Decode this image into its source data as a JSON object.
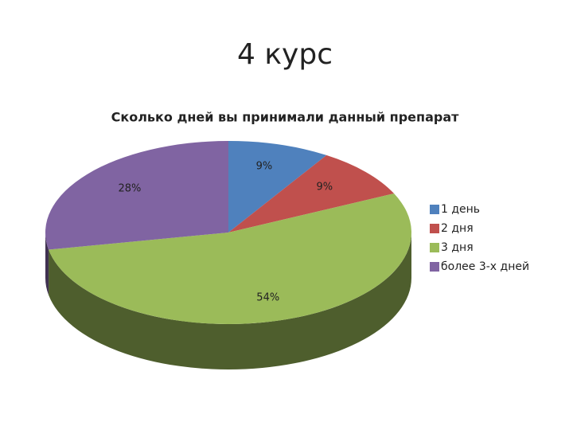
{
  "heading": "4 курс",
  "chart_data": {
    "type": "pie3d",
    "title": "Сколько дней вы принимали данный препарат",
    "categories": [
      "1 день",
      "2 дня",
      "3 дня",
      "более 3-х дней"
    ],
    "values": [
      9,
      9,
      54,
      28
    ],
    "value_labels": [
      "9%",
      "9%",
      "54%",
      "28%"
    ],
    "colors": [
      "#4f81bd",
      "#c0504d",
      "#9bbb59",
      "#8064a2"
    ],
    "legend": "right"
  }
}
